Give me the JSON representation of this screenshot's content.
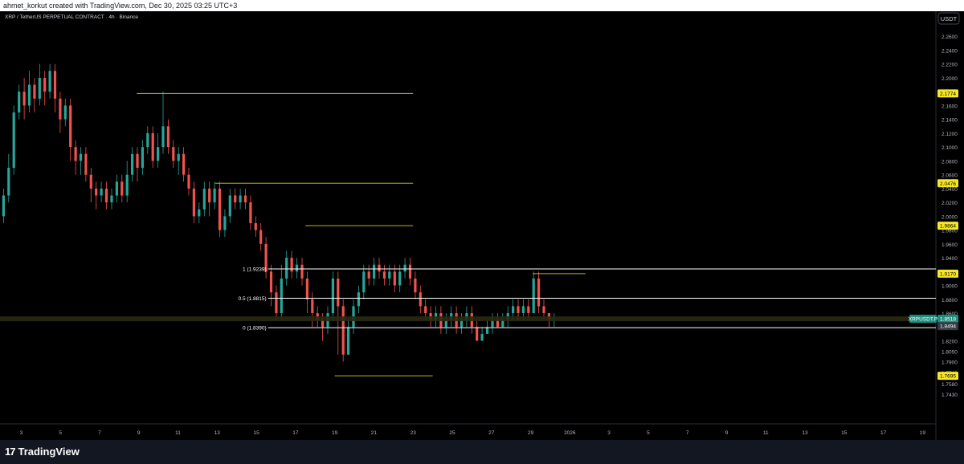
{
  "header": {
    "credit": "ahmet_korkut created with TradingView.com, Dec 30, 2025 03:25 UTC+3",
    "symbol_line": "XRP / TetherUS PERPETUAL CONTRACT · 4h · Binance",
    "currency_button": "USDT"
  },
  "footer": {
    "brand": "TradingView",
    "brand_mark": "17"
  },
  "colors": {
    "background": "#000000",
    "up": "#26a69a",
    "down": "#ef5350",
    "level_line": "#b5b51e",
    "fib_line": "#ffffff",
    "current_price_line": "#2a2a12",
    "price_label_yellow": "#f6e626",
    "price_label_green": "#1f8f7f"
  },
  "chart_data": {
    "type": "candlestick",
    "title": "XRP / TetherUS PERPETUAL CONTRACT · 4h · Binance",
    "ylim": [
      1.7,
      2.28
    ],
    "y_ticks": [
      "2.2600",
      "2.2400",
      "2.2200",
      "2.2000",
      "2.1800",
      "2.1600",
      "2.1400",
      "2.1200",
      "2.1000",
      "2.0800",
      "2.0600",
      "2.0400",
      "2.0200",
      "2.0000",
      "1.9800",
      "1.9600",
      "1.9400",
      "1.9200",
      "1.9000",
      "1.8800",
      "1.8600",
      "1.8400",
      "1.8200",
      "1.8050",
      "1.7900",
      "1.7740",
      "1.7580",
      "1.7430"
    ],
    "x_ticks": [
      "3",
      "5",
      "7",
      "9",
      "11",
      "13",
      "15",
      "17",
      "19",
      "21",
      "23",
      "25",
      "27",
      "29",
      "2026",
      "3",
      "5",
      "7",
      "9",
      "11",
      "13",
      "15",
      "17",
      "19"
    ],
    "x_range_days": [
      2,
      49.6
    ],
    "price_labels": [
      {
        "text": "2.1774",
        "value": 2.1774,
        "style": "yellow"
      },
      {
        "text": "2.0476",
        "value": 2.0476,
        "style": "yellow"
      },
      {
        "text": "1.9864",
        "value": 1.9864,
        "style": "yellow"
      },
      {
        "text": "1.9170",
        "value": 1.917,
        "style": "yellow"
      },
      {
        "text": "XRPUSDT.P",
        "value": 1.8518,
        "style": "green"
      },
      {
        "text": "1.8518",
        "value": 1.8518,
        "style": "green"
      },
      {
        "text": "1.8494",
        "value": 1.8494,
        "style": "dark"
      },
      {
        "text": "1.7695",
        "value": 1.7695,
        "style": "yellow"
      }
    ],
    "levels": [
      {
        "value": 2.1774,
        "from": 8.9,
        "to": 23.0
      },
      {
        "value": 2.0476,
        "from": 12.9,
        "to": 23.0
      },
      {
        "value": 1.9864,
        "from": 17.5,
        "to": 23.0
      },
      {
        "value": 1.917,
        "from": 29.1,
        "to": 31.8
      },
      {
        "value": 1.7695,
        "from": 19.0,
        "to": 24.0
      }
    ],
    "fib_levels": [
      {
        "label": "1 (1.9239)",
        "value": 1.9239
      },
      {
        "label": "0.5 (1.8815)",
        "value": 1.8815
      },
      {
        "label": "0 (1.8390)",
        "value": 1.839
      }
    ],
    "current_price": 1.8518,
    "candles": [
      [
        2.0,
        2.03,
        2.04,
        1.99
      ],
      [
        2.03,
        2.07,
        2.09,
        2.02
      ],
      [
        2.07,
        2.15,
        2.16,
        2.06
      ],
      [
        2.15,
        2.18,
        2.19,
        2.14
      ],
      [
        2.18,
        2.16,
        2.2,
        2.14
      ],
      [
        2.16,
        2.19,
        2.21,
        2.15
      ],
      [
        2.19,
        2.17,
        2.2,
        2.15
      ],
      [
        2.17,
        2.2,
        2.22,
        2.16
      ],
      [
        2.2,
        2.18,
        2.21,
        2.16
      ],
      [
        2.18,
        2.21,
        2.22,
        2.17
      ],
      [
        2.21,
        2.17,
        2.22,
        2.15
      ],
      [
        2.17,
        2.14,
        2.18,
        2.12
      ],
      [
        2.14,
        2.16,
        2.17,
        2.13
      ],
      [
        2.16,
        2.1,
        2.17,
        2.08
      ],
      [
        2.1,
        2.08,
        2.11,
        2.06
      ],
      [
        2.08,
        2.09,
        2.1,
        2.06
      ],
      [
        2.09,
        2.06,
        2.1,
        2.05
      ],
      [
        2.06,
        2.04,
        2.07,
        2.02
      ],
      [
        2.04,
        2.03,
        2.05,
        2.01
      ],
      [
        2.03,
        2.04,
        2.05,
        2.02
      ],
      [
        2.04,
        2.02,
        2.05,
        2.01
      ],
      [
        2.02,
        2.03,
        2.04,
        2.01
      ],
      [
        2.03,
        2.05,
        2.06,
        2.02
      ],
      [
        2.05,
        2.03,
        2.06,
        2.02
      ],
      [
        2.03,
        2.06,
        2.08,
        2.02
      ],
      [
        2.06,
        2.09,
        2.1,
        2.05
      ],
      [
        2.09,
        2.07,
        2.1,
        2.05
      ],
      [
        2.07,
        2.1,
        2.11,
        2.06
      ],
      [
        2.1,
        2.12,
        2.13,
        2.09
      ],
      [
        2.12,
        2.08,
        2.13,
        2.07
      ],
      [
        2.08,
        2.1,
        2.12,
        2.07
      ],
      [
        2.1,
        2.13,
        2.18,
        2.09
      ],
      [
        2.13,
        2.1,
        2.14,
        2.09
      ],
      [
        2.1,
        2.08,
        2.11,
        2.07
      ],
      [
        2.08,
        2.09,
        2.1,
        2.06
      ],
      [
        2.09,
        2.06,
        2.1,
        2.05
      ],
      [
        2.06,
        2.04,
        2.07,
        2.03
      ],
      [
        2.04,
        2.0,
        2.05,
        1.99
      ],
      [
        2.0,
        2.01,
        2.02,
        1.99
      ],
      [
        2.01,
        2.04,
        2.05,
        2.0
      ],
      [
        2.04,
        2.02,
        2.05,
        2.0
      ],
      [
        2.02,
        2.04,
        2.05,
        2.01
      ],
      [
        2.04,
        1.98,
        2.05,
        1.97
      ],
      [
        1.98,
        2.0,
        2.01,
        1.97
      ],
      [
        2.0,
        2.03,
        2.04,
        1.99
      ],
      [
        2.03,
        2.02,
        2.04,
        2.01
      ],
      [
        2.02,
        2.03,
        2.04,
        2.01
      ],
      [
        2.03,
        2.02,
        2.04,
        2.01
      ],
      [
        2.02,
        1.99,
        2.03,
        1.98
      ],
      [
        1.99,
        1.98,
        2.0,
        1.97
      ],
      [
        1.98,
        1.96,
        1.99,
        1.95
      ],
      [
        1.96,
        1.92,
        1.97,
        1.91
      ],
      [
        1.92,
        1.89,
        1.93,
        1.87
      ],
      [
        1.89,
        1.86,
        1.9,
        1.85
      ],
      [
        1.86,
        1.91,
        1.93,
        1.85
      ],
      [
        1.91,
        1.94,
        1.95,
        1.9
      ],
      [
        1.94,
        1.92,
        1.95,
        1.91
      ],
      [
        1.92,
        1.93,
        1.94,
        1.91
      ],
      [
        1.93,
        1.91,
        1.94,
        1.9
      ],
      [
        1.91,
        1.88,
        1.92,
        1.86
      ],
      [
        1.88,
        1.86,
        1.89,
        1.84
      ],
      [
        1.86,
        1.85,
        1.87,
        1.84
      ],
      [
        1.85,
        1.84,
        1.86,
        1.82
      ],
      [
        1.84,
        1.86,
        1.87,
        1.83
      ],
      [
        1.86,
        1.91,
        1.92,
        1.85
      ],
      [
        1.91,
        1.87,
        1.92,
        1.8
      ],
      [
        1.87,
        1.8,
        1.88,
        1.79
      ],
      [
        1.8,
        1.84,
        1.85,
        1.8
      ],
      [
        1.84,
        1.87,
        1.88,
        1.83
      ],
      [
        1.87,
        1.89,
        1.9,
        1.86
      ],
      [
        1.89,
        1.92,
        1.93,
        1.88
      ],
      [
        1.92,
        1.91,
        1.93,
        1.9
      ],
      [
        1.91,
        1.93,
        1.94,
        1.9
      ],
      [
        1.93,
        1.92,
        1.94,
        1.91
      ],
      [
        1.92,
        1.91,
        1.93,
        1.9
      ],
      [
        1.91,
        1.92,
        1.93,
        1.9
      ],
      [
        1.92,
        1.9,
        1.93,
        1.89
      ],
      [
        1.9,
        1.92,
        1.93,
        1.89
      ],
      [
        1.92,
        1.93,
        1.94,
        1.91
      ],
      [
        1.93,
        1.91,
        1.94,
        1.9
      ],
      [
        1.91,
        1.89,
        1.92,
        1.88
      ],
      [
        1.89,
        1.87,
        1.9,
        1.86
      ],
      [
        1.87,
        1.86,
        1.88,
        1.85
      ],
      [
        1.86,
        1.85,
        1.87,
        1.84
      ],
      [
        1.85,
        1.86,
        1.87,
        1.84
      ],
      [
        1.86,
        1.84,
        1.87,
        1.83
      ],
      [
        1.84,
        1.85,
        1.86,
        1.83
      ],
      [
        1.85,
        1.86,
        1.87,
        1.84
      ],
      [
        1.86,
        1.84,
        1.87,
        1.83
      ],
      [
        1.84,
        1.85,
        1.86,
        1.83
      ],
      [
        1.85,
        1.86,
        1.87,
        1.84
      ],
      [
        1.86,
        1.84,
        1.87,
        1.83
      ],
      [
        1.84,
        1.82,
        1.85,
        1.82
      ],
      [
        1.82,
        1.83,
        1.84,
        1.82
      ],
      [
        1.83,
        1.84,
        1.85,
        1.83
      ],
      [
        1.84,
        1.85,
        1.86,
        1.83
      ],
      [
        1.85,
        1.84,
        1.86,
        1.84
      ],
      [
        1.84,
        1.85,
        1.86,
        1.84
      ],
      [
        1.85,
        1.86,
        1.87,
        1.84
      ],
      [
        1.86,
        1.87,
        1.88,
        1.85
      ],
      [
        1.87,
        1.86,
        1.88,
        1.85
      ],
      [
        1.86,
        1.87,
        1.88,
        1.85
      ],
      [
        1.87,
        1.86,
        1.88,
        1.85
      ],
      [
        1.86,
        1.91,
        1.92,
        1.86
      ],
      [
        1.91,
        1.87,
        1.92,
        1.86
      ],
      [
        1.87,
        1.86,
        1.88,
        1.85
      ],
      [
        1.86,
        1.85,
        1.86,
        1.84
      ],
      [
        1.85,
        1.85,
        1.86,
        1.84
      ]
    ]
  }
}
